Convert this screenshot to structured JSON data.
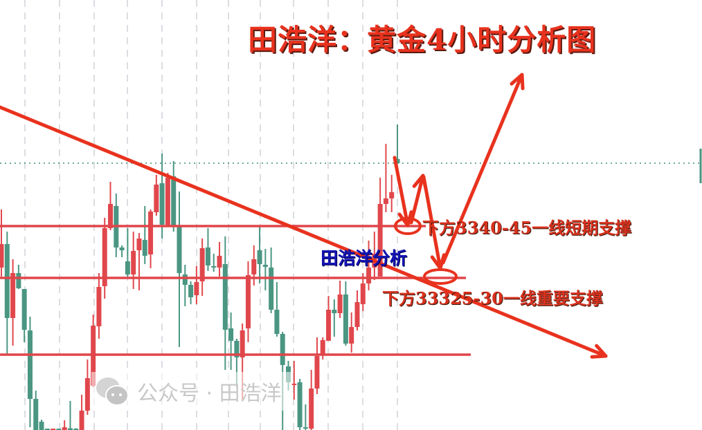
{
  "title": "田浩洋：黄金4小时分析图",
  "annotations": {
    "short_support": "下方3340-45一线短期支撑",
    "key_support": "下方33325-30一线重要支撑",
    "author_label": "田浩洋分析"
  },
  "watermark": {
    "icon": "wechat-icon",
    "text": "公众号 · 田浩洋"
  },
  "colors": {
    "up": "#e0474c",
    "down": "#4a9682",
    "lines": "#e0454a",
    "arrows": "#e8321e",
    "current_price": "#3d8f75",
    "author": "#1414b4"
  },
  "chart_data": {
    "type": "candlestick",
    "timeframe": "4小时",
    "instrument": "黄金",
    "ylim": [
      3283.5,
      3407.9
    ],
    "grid": "vertical dashed",
    "ohlc": [
      [
        3330.5,
        3347.3,
        3327.9,
        3337.3
      ],
      [
        3337.3,
        3340.9,
        3305.5,
        3315.9
      ],
      [
        3315.9,
        3332.9,
        3307.9,
        3328.9
      ],
      [
        3328.9,
        3331.3,
        3324.3,
        3324.5
      ],
      [
        3324.3,
        3324.3,
        3308.9,
        3312.5
      ],
      [
        3312.3,
        3316.3,
        3284.3,
        3292.5
      ],
      [
        3292.5,
        3294.9,
        3282.0,
        3283.5
      ],
      [
        3285.9,
        3286.5,
        3276.0,
        3280.0
      ],
      [
        3280.0,
        3282.0,
        3268.0,
        3272.0
      ],
      [
        3270.0,
        3279.0,
        3266.0,
        3276.0
      ],
      [
        3276.0,
        3280.0,
        3268.0,
        3272.0
      ],
      [
        3280.0,
        3286.3,
        3278.0,
        3284.3
      ],
      [
        3284.0,
        3291.9,
        3279.0,
        3282.5
      ],
      [
        3283.0,
        3284.0,
        3280.0,
        3282.0
      ],
      [
        3279.9,
        3293.7,
        3277.0,
        3289.1
      ],
      [
        3289.1,
        3303.9,
        3287.9,
        3298.5
      ],
      [
        3296.3,
        3316.9,
        3295.9,
        3313.7
      ],
      [
        3313.5,
        3328.9,
        3309.9,
        3324.9
      ],
      [
        3325.1,
        3344.9,
        3321.5,
        3341.9
      ],
      [
        3341.9,
        3355.3,
        3341.3,
        3348.9
      ],
      [
        3348.3,
        3351.9,
        3333.5,
        3336.3
      ],
      [
        3336.3,
        3336.9,
        3333.5,
        3335.5
      ],
      [
        3332.3,
        3341.9,
        3327.9,
        3328.5
      ],
      [
        3328.5,
        3340.9,
        3324.3,
        3335.3
      ],
      [
        3335.5,
        3340.5,
        3323.9,
        3338.9
      ],
      [
        3338.5,
        3348.3,
        3331.5,
        3333.9
      ],
      [
        3334.3,
        3347.3,
        3330.3,
        3346.7
      ],
      [
        3346.5,
        3357.3,
        3345.5,
        3354.5
      ],
      [
        3354.9,
        3363.5,
        3338.9,
        3342.9
      ],
      [
        3342.5,
        3357.9,
        3342.3,
        3356.5
      ],
      [
        3356.9,
        3361.3,
        3340.9,
        3342.5
      ],
      [
        3342.5,
        3352.5,
        3307.5,
        3328.9
      ],
      [
        3328.5,
        3331.3,
        3319.3,
        3325.5
      ],
      [
        3325.5,
        3326.5,
        3319.9,
        3321.9
      ],
      [
        3322.5,
        3330.9,
        3319.9,
        3326.3
      ],
      [
        3326.5,
        3338.9,
        3322.3,
        3336.1
      ],
      [
        3336.3,
        3341.9,
        3329.5,
        3331.1
      ],
      [
        3330.9,
        3334.5,
        3329.3,
        3330.5
      ],
      [
        3330.5,
        3337.9,
        3327.9,
        3333.9
      ],
      [
        3331.5,
        3339.5,
        3300.9,
        3312.5
      ],
      [
        3312.9,
        3317.5,
        3300.9,
        3309.3
      ],
      [
        3309.3,
        3309.9,
        3295.9,
        3304.5
      ],
      [
        3304.5,
        3314.3,
        3291.9,
        3312.3
      ],
      [
        3312.9,
        3332.3,
        3308.9,
        3328.3
      ],
      [
        3328.5,
        3336.9,
        3325.3,
        3332.9
      ],
      [
        3335.5,
        3342.5,
        3325.9,
        3331.5
      ],
      [
        3331.3,
        3335.9,
        3323.9,
        3330.7
      ],
      [
        3330.5,
        3336.3,
        3317.3,
        3318.3
      ],
      [
        3318.3,
        3326.3,
        3310.5,
        3311.3
      ],
      [
        3311.3,
        3311.9,
        3283.5,
        3302.3
      ],
      [
        3301.9,
        3303.5,
        3294.9,
        3297.3
      ],
      [
        3296.9,
        3303.5,
        3292.3,
        3296.9
      ],
      [
        3297.3,
        3298.3,
        3283.0,
        3284.3
      ],
      [
        3284.3,
        3290.9,
        3283.0,
        3283.9
      ],
      [
        3283.9,
        3300.9,
        3283.3,
        3295.5
      ],
      [
        3295.5,
        3310.3,
        3293.9,
        3304.9
      ],
      [
        3305.3,
        3310.3,
        3303.9,
        3309.5
      ],
      [
        3309.3,
        3322.3,
        3309.3,
        3318.3
      ],
      [
        3318.3,
        3321.3,
        3310.5,
        3317.3
      ],
      [
        3317.3,
        3326.7,
        3315.9,
        3322.7
      ],
      [
        3322.7,
        3326.5,
        3307.9,
        3308.5
      ],
      [
        3308.5,
        3317.5,
        3305.9,
        3313.3
      ],
      [
        3313.3,
        3323.9,
        3312.3,
        3320.5
      ],
      [
        3319.9,
        3328.9,
        3317.9,
        3325.9
      ],
      [
        3325.9,
        3338.3,
        3323.9,
        3330.5
      ],
      [
        3330.5,
        3340.9,
        3326.9,
        3334.5
      ],
      [
        3327.9,
        3356.5,
        3327.9,
        3348.9
      ],
      [
        3348.9,
        3366.3,
        3346.5,
        3350.5
      ],
      [
        3350.5,
        3357.3,
        3346.5,
        3352.3
      ],
      [
        3361.9,
        3371.9,
        3360.5,
        3360.7
      ]
    ],
    "horizontal_levels": [
      3342.5,
      3327.5,
      3305.3
    ],
    "current_price": 3360.7,
    "trendline": {
      "from_index": 0,
      "from_price": 3376.9,
      "to_price": 3304.9
    }
  }
}
